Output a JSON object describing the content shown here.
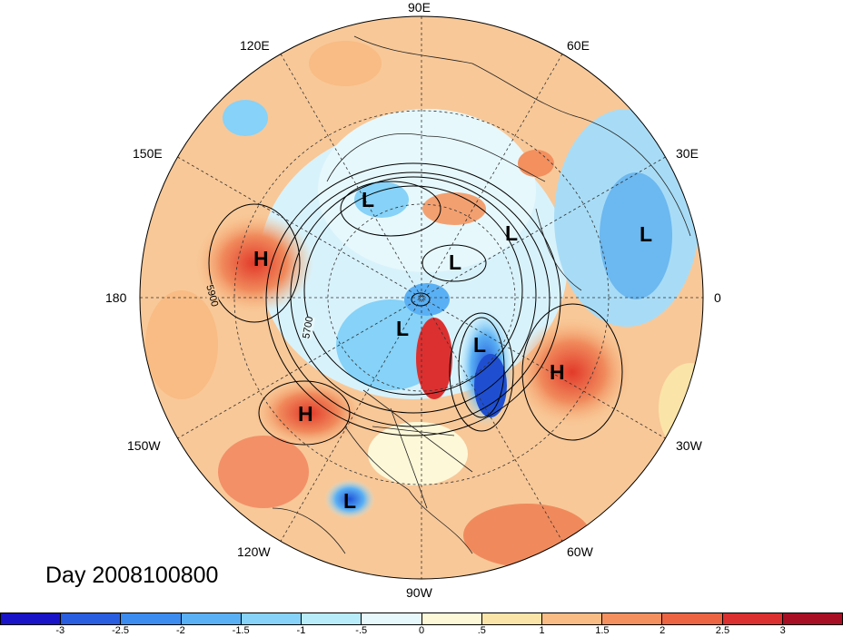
{
  "title": "Day 2008100800",
  "longitude_labels": [
    {
      "id": "lon-90e",
      "text": "90E"
    },
    {
      "id": "lon-60e",
      "text": "60E"
    },
    {
      "id": "lon-30e",
      "text": "30E"
    },
    {
      "id": "lon-0",
      "text": "0"
    },
    {
      "id": "lon-30w",
      "text": "30W"
    },
    {
      "id": "lon-60w",
      "text": "60W"
    },
    {
      "id": "lon-90w",
      "text": "90W"
    },
    {
      "id": "lon-120w",
      "text": "120W"
    },
    {
      "id": "lon-150w",
      "text": "150W"
    },
    {
      "id": "lon-180",
      "text": "180"
    },
    {
      "id": "lon-150e",
      "text": "150E"
    },
    {
      "id": "lon-120e",
      "text": "120E"
    }
  ],
  "pressure_centers": [
    {
      "id": "h-pacific-west",
      "text": "H"
    },
    {
      "id": "h-pacific-east",
      "text": "H"
    },
    {
      "id": "h-atlantic",
      "text": "H"
    },
    {
      "id": "l-siberia",
      "text": "L"
    },
    {
      "id": "l-arctic",
      "text": "L"
    },
    {
      "id": "l-scandinavia",
      "text": "L"
    },
    {
      "id": "l-russia",
      "text": "L"
    },
    {
      "id": "l-canada",
      "text": "L"
    },
    {
      "id": "l-greenland",
      "text": "L"
    },
    {
      "id": "l-hawaii",
      "text": "L"
    }
  ],
  "contour_labels": [
    {
      "id": "contour-5900",
      "text": "5900"
    },
    {
      "id": "contour-5700",
      "text": "5700"
    }
  ],
  "colorbar": {
    "colors": [
      "#1a14c8",
      "#2a5ee0",
      "#3c8cf0",
      "#5ab0f4",
      "#86d2f8",
      "#b8ecfa",
      "#e6f8fc",
      "#fdf8d8",
      "#fbe4a8",
      "#f8bc84",
      "#f3905e",
      "#ec6442",
      "#dc3030",
      "#a80f24"
    ],
    "ticks": [
      "-3",
      "-2.5",
      "-2",
      "-1.5",
      "-1",
      "-.5",
      "0",
      ".5",
      "1",
      "1.5",
      "2",
      "2.5",
      "3"
    ]
  }
}
